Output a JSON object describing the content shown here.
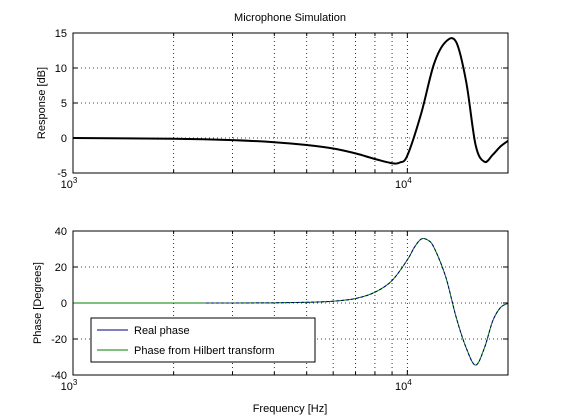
{
  "chart_data": [
    {
      "type": "line",
      "title": "Microphone Simulation",
      "xlabel": "",
      "ylabel": "Response [dB]",
      "xscale": "log",
      "xlim": [
        1000,
        20000
      ],
      "ylim": [
        -5,
        15
      ],
      "x_ticks": [
        {
          "value": 1000,
          "base": "10",
          "exp": "3"
        },
        {
          "value": 10000,
          "base": "10",
          "exp": "4"
        }
      ],
      "y_ticks": [
        {
          "value": -5,
          "label": "-5"
        },
        {
          "value": 0,
          "label": "0"
        },
        {
          "value": 5,
          "label": "5"
        },
        {
          "value": 10,
          "label": "10"
        },
        {
          "value": 15,
          "label": "15"
        }
      ],
      "grid": true,
      "series": [
        {
          "color": "#000000",
          "x": [
            1000,
            2000,
            3000,
            4000,
            5000,
            6000,
            7000,
            8000,
            9000,
            9500,
            10000,
            11000,
            12000,
            13000,
            14000,
            15000,
            16000,
            17000,
            18000,
            19000,
            20000
          ],
          "y": [
            0,
            -0.1,
            -0.3,
            -0.6,
            -1.0,
            -1.5,
            -2.2,
            -3.0,
            -3.6,
            -3.5,
            -2.5,
            3.5,
            10.5,
            13.7,
            13.7,
            8.0,
            -1.0,
            -3.4,
            -2.4,
            -1.2,
            -0.4
          ]
        }
      ]
    },
    {
      "type": "line",
      "title": "",
      "xlabel": "Frequency [Hz]",
      "ylabel": "Phase [Degrees]",
      "xscale": "log",
      "xlim": [
        1000,
        20000
      ],
      "ylim": [
        -40,
        40
      ],
      "x_ticks": [
        {
          "value": 1000,
          "base": "10",
          "exp": "3"
        },
        {
          "value": 10000,
          "base": "10",
          "exp": "4"
        }
      ],
      "y_ticks": [
        {
          "value": -40,
          "label": "-40"
        },
        {
          "value": -20,
          "label": "-20"
        },
        {
          "value": 0,
          "label": "0"
        },
        {
          "value": 20,
          "label": "20"
        },
        {
          "value": 40,
          "label": "40"
        }
      ],
      "grid": true,
      "legend": {
        "placement": "lower-left"
      },
      "series": [
        {
          "name": "Real phase",
          "color": "#00007f",
          "x": [
            2500,
            3000,
            4000,
            5000,
            6000,
            7000,
            8000,
            9000,
            10000,
            10500,
            11000,
            11500,
            12000,
            13000,
            14000,
            15000,
            16000,
            17000,
            18000,
            19000,
            20000
          ],
          "y": [
            0,
            0,
            0.1,
            0.4,
            1.0,
            2.5,
            6.0,
            12.5,
            24.0,
            31.0,
            35.5,
            35.0,
            31.0,
            15.0,
            -8.0,
            -25.0,
            -34.5,
            -25.0,
            -10.0,
            -2.5,
            -0.2
          ]
        },
        {
          "name": "Phase from Hilbert transform",
          "color": "#007f00",
          "x": [
            1000,
            2000,
            3000,
            4000,
            5000,
            6000,
            7000,
            8000,
            9000,
            10000,
            10500,
            11000,
            11500,
            12000,
            13000,
            14000,
            15000,
            16000,
            17000,
            18000,
            19000,
            20000
          ],
          "y": [
            0,
            0,
            0,
            0.1,
            0.4,
            1.0,
            2.5,
            6.0,
            12.5,
            24.0,
            31.0,
            35.5,
            35.0,
            31.0,
            15.0,
            -8.0,
            -25.0,
            -34.5,
            -25.0,
            -10.0,
            -2.5,
            -0.2
          ]
        }
      ]
    }
  ]
}
